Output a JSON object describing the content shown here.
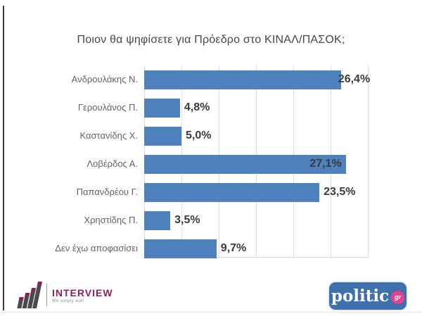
{
  "chart_data": {
    "type": "bar",
    "orientation": "horizontal",
    "title": "Ποιον θα ψηφίσετε για Πρόεδρο στο ΚΙΝΑΛ/ΠΑΣΟΚ;",
    "categories": [
      "Ανδρουλάκης Ν.",
      "Γερουλάνος Π.",
      "Καστανίδης Χ.",
      "Λοβέρδος Α.",
      "Παπανδρέου Γ.",
      "Χρηστίδης Π.",
      "Δεν έχω αποφασίσει"
    ],
    "values": [
      26.4,
      4.8,
      5.0,
      27.1,
      23.5,
      3.5,
      9.7
    ],
    "value_labels": [
      "26,4%",
      "4,8%",
      "5,0%",
      "27,1%",
      "23,5%",
      "3,5%",
      "9,7%"
    ],
    "xlabel": "",
    "ylabel": "",
    "xlim": [
      0,
      30
    ],
    "gridline_step": 5,
    "grid": true,
    "legend": false,
    "bar_color": "#4f81bd",
    "label_offsets": [
      -4,
      6,
      6,
      -52,
      6,
      6,
      6
    ]
  },
  "footer": {
    "interview": {
      "brand": "INTERVIEW",
      "tagline": "We simply ask!",
      "brand_color": "#8c2157"
    },
    "politic": {
      "brand": "politic",
      "suffix": "gr",
      "bg_color": "#3f70ae",
      "badge_color": "#e5418f"
    }
  }
}
